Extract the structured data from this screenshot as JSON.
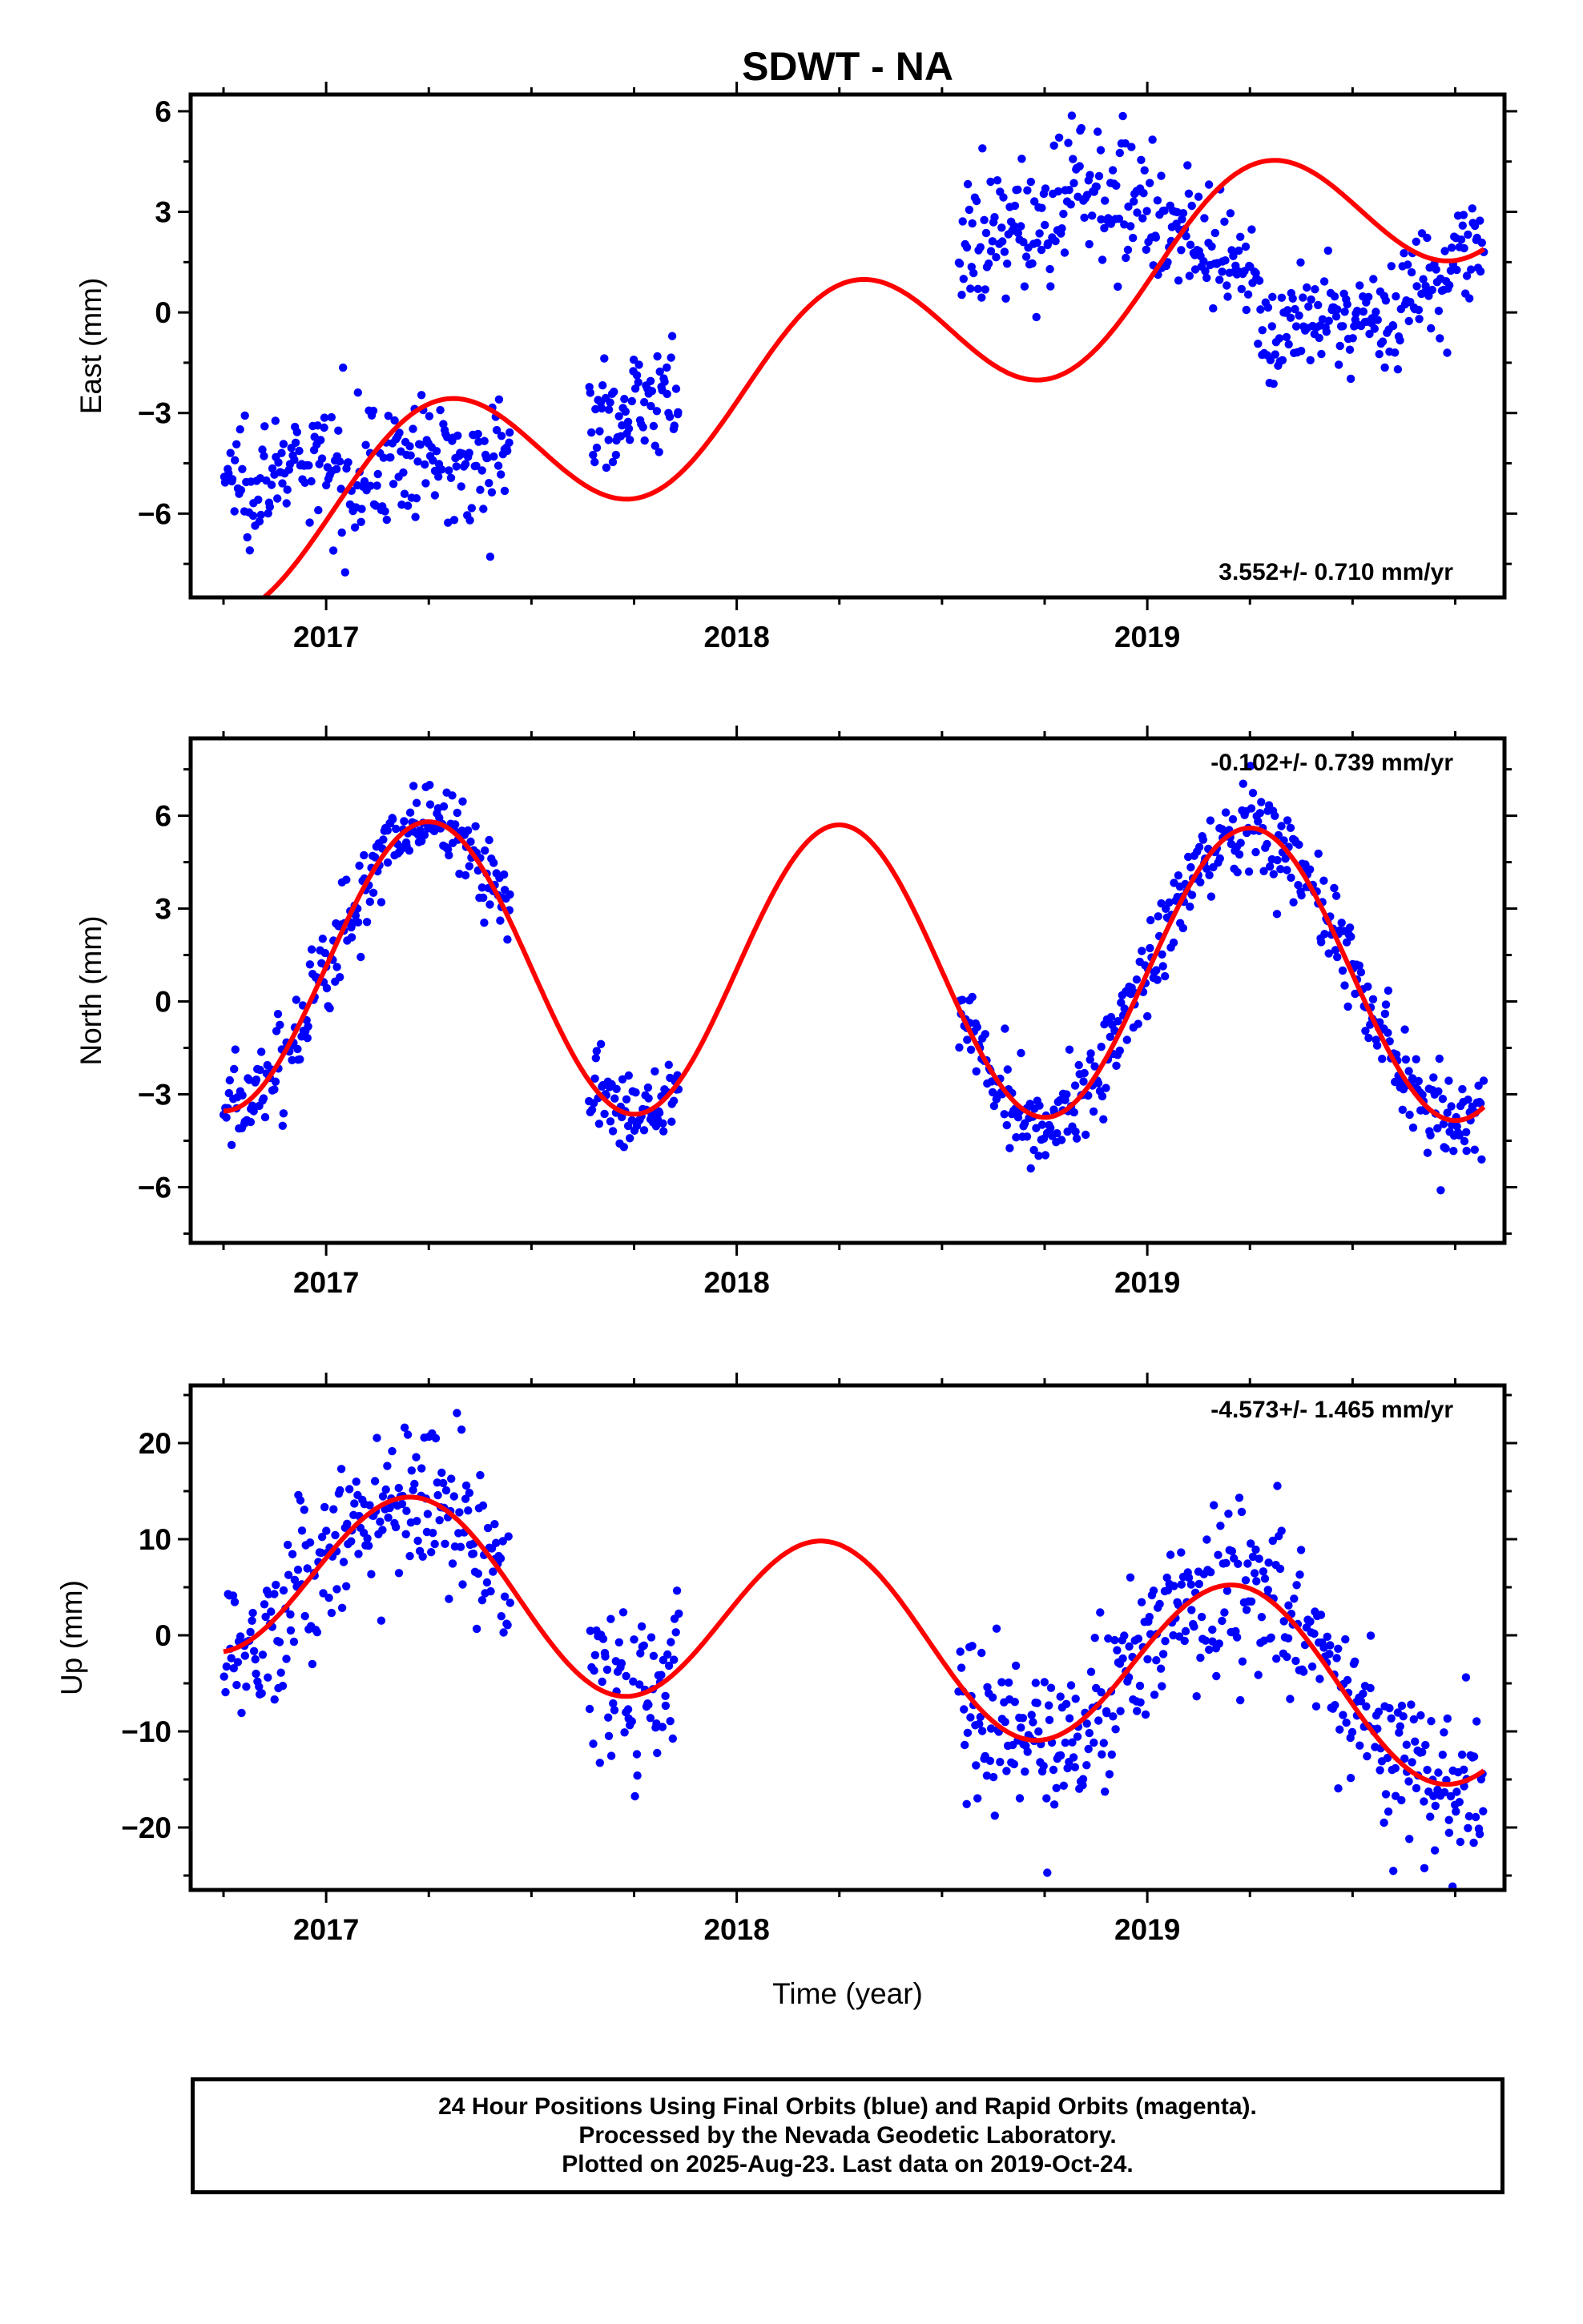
{
  "title": "SDWT - NA",
  "xlabel": "Time (year)",
  "footer": {
    "line1": "24 Hour Positions Using Final Orbits (blue) and Rapid Orbits (magenta).",
    "line2": "Processed by the Nevada Geodetic Laboratory.",
    "line3": "Plotted on 2025-Aug-23. Last data on 2019-Oct-24."
  },
  "colors": {
    "points": "#0000ff",
    "fit": "#ff0000"
  },
  "chart_data": [
    {
      "type": "scatter",
      "ylabel": "East (mm)",
      "rate": "3.552+/- 0.710 mm/yr",
      "xlim": [
        2016.67,
        2019.87
      ],
      "ylim": [
        -8.5,
        6.5
      ],
      "yticks": [
        -6,
        -3,
        0,
        3,
        6
      ],
      "yticklabels": [
        "−6",
        "−3",
        "0",
        "3",
        "6"
      ],
      "xticks": [
        2017,
        2018,
        2019
      ],
      "xticklabels": [
        "2017",
        "2018",
        "2019"
      ],
      "segments": [
        {
          "x0": 2016.75,
          "x1": 2017.45,
          "trend": [
            -4.9,
            -4.2
          ],
          "noise": 0.9
        },
        {
          "x0": 2017.64,
          "x1": 2017.86,
          "trend": [
            -3.3,
            -2.2
          ],
          "noise": 0.75
        },
        {
          "x0": 2018.54,
          "x1": 2018.8,
          "trend": [
            1.6,
            3.0
          ],
          "noise": 1.0
        },
        {
          "x0": 2018.8,
          "x1": 2019.02,
          "trend": [
            4.3,
            3.0
          ],
          "noise": 1.0
        },
        {
          "x0": 2019.02,
          "x1": 2019.28,
          "trend": [
            3.0,
            0.3
          ],
          "noise": 0.9
        },
        {
          "x0": 2019.28,
          "x1": 2019.62,
          "trend": [
            -0.6,
            0.0
          ],
          "noise": 0.8
        },
        {
          "x0": 2019.62,
          "x1": 2019.82,
          "trend": [
            0.3,
            2.3
          ],
          "noise": 0.9
        }
      ],
      "fit_model": {
        "a": -1.3,
        "b": 3.552,
        "c": -0.3,
        "d": 2.3,
        "t0": 2018.3
      },
      "fit_range": [
        2016.75,
        2019.82
      ]
    },
    {
      "type": "scatter",
      "ylabel": "North (mm)",
      "rate": "-0.102+/- 0.739 mm/yr",
      "xlim": [
        2016.67,
        2019.87
      ],
      "ylim": [
        -7.8,
        8.5
      ],
      "yticks": [
        -6,
        -3,
        0,
        3,
        6
      ],
      "yticklabels": [
        "−6",
        "−3",
        "0",
        "3",
        "6"
      ],
      "xticks": [
        2017,
        2018,
        2019
      ],
      "xticklabels": [
        "2017",
        "2018",
        "2019"
      ],
      "segments": [
        {
          "x0": 2016.75,
          "x1": 2017.45,
          "trend": "fit",
          "noise": 0.75
        },
        {
          "x0": 2017.64,
          "x1": 2017.86,
          "trend": "fit",
          "noise": 0.75
        },
        {
          "x0": 2018.54,
          "x1": 2019.82,
          "trend": "fit",
          "noise": 0.75
        }
      ],
      "fit_model": {
        "a": 1.0,
        "b": -0.102,
        "c": 0.0,
        "d": 4.7,
        "t0": 2018.3
      },
      "fit_range": [
        2016.75,
        2019.82
      ]
    },
    {
      "type": "scatter",
      "ylabel": "Up (mm)",
      "rate": "-4.573+/- 1.465 mm/yr",
      "xlim": [
        2016.67,
        2019.87
      ],
      "ylim": [
        -26.5,
        26
      ],
      "yticks": [
        -20,
        -10,
        0,
        10,
        20
      ],
      "yticklabels": [
        "−20",
        "−10",
        "0",
        "10",
        "20"
      ],
      "xticks": [
        2017,
        2018,
        2019
      ],
      "xticklabels": [
        "2017",
        "2018",
        "2019"
      ],
      "segments": [
        {
          "x0": 2016.75,
          "x1": 2017.45,
          "trend": "fit",
          "noise": 4.2
        },
        {
          "x0": 2017.64,
          "x1": 2017.86,
          "trend": "fit",
          "noise": 4.2
        },
        {
          "x0": 2018.54,
          "x1": 2019.82,
          "trend": "fit",
          "noise": 4.2
        }
      ],
      "fit_model": {
        "a": 0.2,
        "b": -4.573,
        "c": 1.9,
        "d": 9.0,
        "t0": 2018.3
      },
      "fit_range": [
        2016.75,
        2019.82
      ]
    }
  ]
}
